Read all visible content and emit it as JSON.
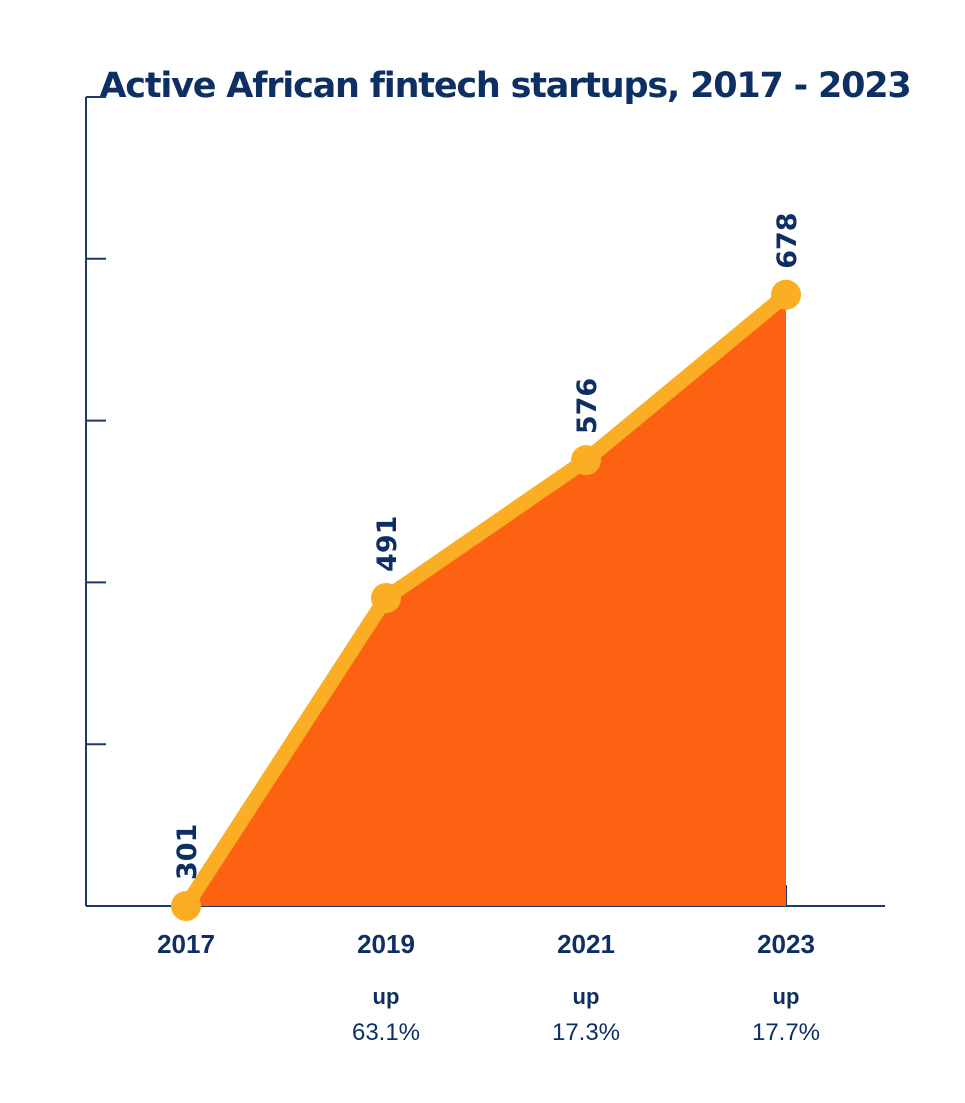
{
  "colors": {
    "axis": "#1d3a6e",
    "text": "#0e2f63",
    "area": "#fd6212",
    "line": "#fbae24"
  },
  "chart_data": {
    "type": "area",
    "title": "Active African fintech startups, 2017 - 2023",
    "xlabel": "",
    "ylabel": "",
    "x": [
      "2017",
      "2019",
      "2021",
      "2023"
    ],
    "values": [
      301,
      491,
      576,
      678
    ],
    "ylim": [
      301,
      800
    ],
    "y_axis_ticks": 6,
    "x_axis_ticks": 8,
    "grid": false,
    "growth": [
      {
        "x": "2019",
        "prefix": "up",
        "value": "63.1%"
      },
      {
        "x": "2021",
        "prefix": "up",
        "value": "17.3%"
      },
      {
        "x": "2023",
        "prefix": "up",
        "value": "17.7%"
      }
    ]
  }
}
